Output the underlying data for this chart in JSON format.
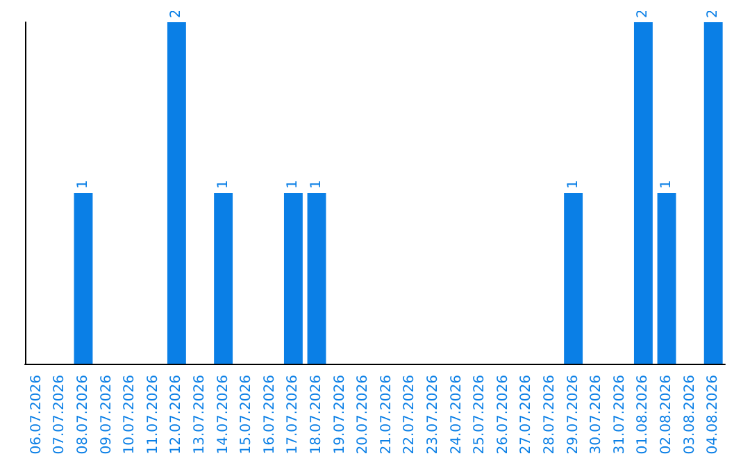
{
  "chart_data": {
    "type": "bar",
    "categories": [
      "06.07.2026",
      "07.07.2026",
      "08.07.2026",
      "09.07.2026",
      "10.07.2026",
      "11.07.2026",
      "12.07.2026",
      "13.07.2026",
      "14.07.2026",
      "15.07.2026",
      "16.07.2026",
      "17.07.2026",
      "18.07.2026",
      "19.07.2026",
      "20.07.2026",
      "21.07.2026",
      "22.07.2026",
      "23.07.2026",
      "24.07.2026",
      "25.07.2026",
      "26.07.2026",
      "27.07.2026",
      "28.07.2026",
      "29.07.2026",
      "30.07.2026",
      "31.07.2026",
      "01.08.2026",
      "02.08.2026",
      "03.08.2026",
      "04.08.2026"
    ],
    "values": [
      0,
      0,
      1,
      0,
      0,
      0,
      2,
      0,
      1,
      0,
      0,
      1,
      1,
      0,
      0,
      0,
      0,
      0,
      0,
      0,
      0,
      0,
      0,
      1,
      0,
      0,
      2,
      1,
      0,
      2
    ],
    "value_labels": [
      null,
      null,
      "1",
      null,
      null,
      null,
      "2",
      null,
      "1",
      null,
      null,
      "1",
      "1",
      null,
      null,
      null,
      null,
      null,
      null,
      null,
      null,
      null,
      null,
      "1",
      null,
      null,
      "2",
      "1",
      null,
      "2"
    ],
    "color": "#0a7fe6",
    "tick_labels": "x"
  }
}
